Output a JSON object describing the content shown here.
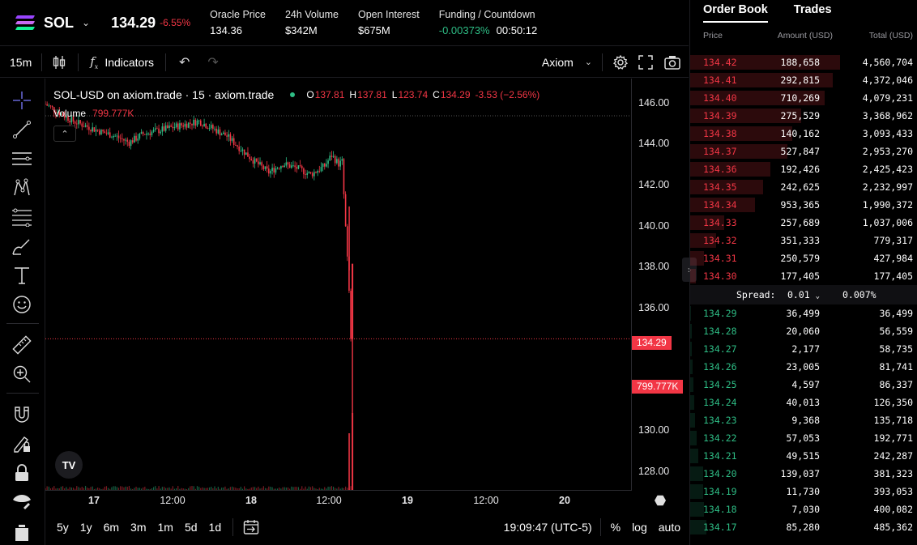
{
  "header": {
    "symbol": "SOL",
    "price": "134.29",
    "change": "-6.55%",
    "stats": [
      {
        "label": "Oracle Price",
        "value": "134.36"
      },
      {
        "label": "24h Volume",
        "value": "$342M"
      },
      {
        "label": "Open Interest",
        "value": "$675M"
      }
    ],
    "funding_label": "Funding / Countdown",
    "funding_rate": "-0.00373%",
    "countdown": "00:50:12"
  },
  "toolbar": {
    "timeframe": "15m",
    "indicators_label": "Indicators",
    "layout_name": "Axiom"
  },
  "chart": {
    "title": "SOL-USD on axiom.trade · 15 · axiom.trade",
    "ohlc": {
      "o": "137.81",
      "h": "137.81",
      "l": "123.74",
      "c": "134.29",
      "chg": "-3.53 (−2.56%)"
    },
    "volume_label": "Volume",
    "volume_value": "799.777K",
    "price_badge": "134.29",
    "volume_badge": "799.777K",
    "yticks": [
      "146.00",
      "144.00",
      "142.00",
      "140.00",
      "138.00",
      "136.00",
      "130.00",
      "128.00"
    ],
    "xticks": [
      "17",
      "12:00",
      "18",
      "12:00",
      "19",
      "12:00",
      "20"
    ],
    "tv_logo": "TV"
  },
  "chart_data": {
    "type": "candlestick",
    "symbol": "SOL-USD",
    "interval": "15",
    "ylim": [
      127.2,
      146.5
    ],
    "price_line": 134.29,
    "x_range": [
      "16 18:00",
      "20 06:00"
    ],
    "data_end": "18 13:45",
    "x_labels": [
      "17",
      "12:00",
      "18",
      "12:00",
      "19",
      "12:00",
      "20"
    ],
    "close_path": [
      {
        "t": "16 18:00",
        "v": 145.3
      },
      {
        "t": "16 22:00",
        "v": 144.5
      },
      {
        "t": "17 02:00",
        "v": 144.0
      },
      {
        "t": "17 04:00",
        "v": 143.8
      },
      {
        "t": "17 06:00",
        "v": 143.5
      },
      {
        "t": "17 08:00",
        "v": 143.9
      },
      {
        "t": "17 12:00",
        "v": 144.2
      },
      {
        "t": "17 16:00",
        "v": 144.5
      },
      {
        "t": "17 20:00",
        "v": 143.8
      },
      {
        "t": "18 00:00",
        "v": 142.6
      },
      {
        "t": "18 02:00",
        "v": 142.1
      },
      {
        "t": "18 04:00",
        "v": 142.5
      },
      {
        "t": "18 06:00",
        "v": 142.3
      },
      {
        "t": "18 08:00",
        "v": 142.0
      },
      {
        "t": "18 10:00",
        "v": 142.4
      },
      {
        "t": "18 11:00",
        "v": 142.9
      },
      {
        "t": "18 12:00",
        "v": 142.5
      },
      {
        "t": "18 12:30",
        "v": 142.6
      },
      {
        "t": "18 13:00",
        "v": 139.5
      },
      {
        "t": "18 13:30",
        "v": 136.5
      },
      {
        "t": "18 13:45",
        "v": 134.29
      }
    ]
  },
  "bottom": {
    "ranges": [
      "5y",
      "1y",
      "6m",
      "3m",
      "1m",
      "5d",
      "1d"
    ],
    "time": "19:09:47 (UTC-5)",
    "percent": "%",
    "log": "log",
    "auto": "auto"
  },
  "orderbook": {
    "tabs": [
      "Order Book",
      "Trades"
    ],
    "cols": [
      "Price",
      "Amount (USD)",
      "Total (USD)"
    ],
    "asks": [
      {
        "price": "134.42",
        "amount": "188,658",
        "total": "4,560,704",
        "depth": 0.88
      },
      {
        "price": "134.41",
        "amount": "292,815",
        "total": "4,372,046",
        "depth": 0.84
      },
      {
        "price": "134.40",
        "amount": "710,269",
        "total": "4,079,231",
        "depth": 0.79
      },
      {
        "price": "134.39",
        "amount": "275,529",
        "total": "3,368,962",
        "depth": 0.65
      },
      {
        "price": "134.38",
        "amount": "140,162",
        "total": "3,093,433",
        "depth": 0.6
      },
      {
        "price": "134.37",
        "amount": "527,847",
        "total": "2,953,270",
        "depth": 0.57
      },
      {
        "price": "134.36",
        "amount": "192,426",
        "total": "2,425,423",
        "depth": 0.47
      },
      {
        "price": "134.35",
        "amount": "242,625",
        "total": "2,232,997",
        "depth": 0.43
      },
      {
        "price": "134.34",
        "amount": "953,365",
        "total": "1,990,372",
        "depth": 0.38
      },
      {
        "price": "134.33",
        "amount": "257,689",
        "total": "1,037,006",
        "depth": 0.2
      },
      {
        "price": "134.32",
        "amount": "351,333",
        "total": "779,317",
        "depth": 0.15
      },
      {
        "price": "134.31",
        "amount": "250,579",
        "total": "427,984",
        "depth": 0.08
      },
      {
        "price": "134.30",
        "amount": "177,405",
        "total": "177,405",
        "depth": 0.035
      }
    ],
    "spread_label": "Spread:",
    "spread_value": "0.01",
    "spread_pct": "0.007%",
    "bids": [
      {
        "price": "134.29",
        "amount": "36,499",
        "total": "36,499",
        "depth": 0.007
      },
      {
        "price": "134.28",
        "amount": "20,060",
        "total": "56,559",
        "depth": 0.011
      },
      {
        "price": "134.27",
        "amount": "2,177",
        "total": "58,735",
        "depth": 0.011
      },
      {
        "price": "134.26",
        "amount": "23,005",
        "total": "81,741",
        "depth": 0.016
      },
      {
        "price": "134.25",
        "amount": "4,597",
        "total": "86,337",
        "depth": 0.017
      },
      {
        "price": "134.24",
        "amount": "40,013",
        "total": "126,350",
        "depth": 0.025
      },
      {
        "price": "134.23",
        "amount": "9,368",
        "total": "135,718",
        "depth": 0.027
      },
      {
        "price": "134.22",
        "amount": "57,053",
        "total": "192,771",
        "depth": 0.038
      },
      {
        "price": "134.21",
        "amount": "49,515",
        "total": "242,287",
        "depth": 0.048
      },
      {
        "price": "134.20",
        "amount": "139,037",
        "total": "381,323",
        "depth": 0.075
      },
      {
        "price": "134.19",
        "amount": "11,730",
        "total": "393,053",
        "depth": 0.078
      },
      {
        "price": "134.18",
        "amount": "7,030",
        "total": "400,082",
        "depth": 0.079
      },
      {
        "price": "134.17",
        "amount": "85,280",
        "total": "485,362",
        "depth": 0.096
      }
    ]
  },
  "colors": {
    "up": "#2ebd85",
    "down": "#f23645",
    "bg": "#000000"
  }
}
